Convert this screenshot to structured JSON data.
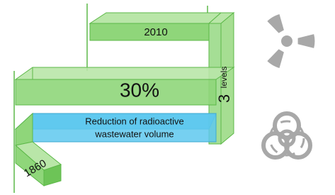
{
  "top_slab": {
    "label": "2010"
  },
  "middle_slab": {
    "label": "30%"
  },
  "pillar": {
    "number": "3",
    "word": "levels"
  },
  "blue_slab": {
    "lines": [
      "Reduction of radioactive",
      "wastewater volume"
    ]
  },
  "bottom_slab": {
    "label": "1860"
  }
}
